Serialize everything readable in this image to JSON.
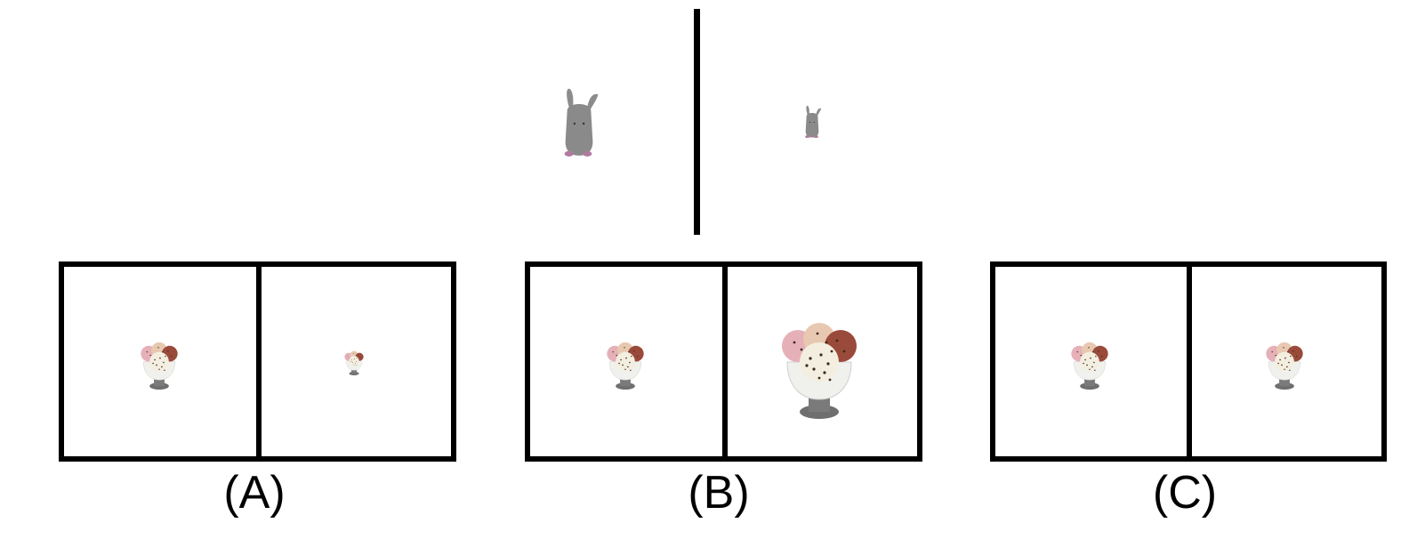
{
  "top_pair": {
    "left_icon": "bunny-figurine-large",
    "right_icon": "bunny-figurine-small"
  },
  "options": [
    {
      "label": "(A)",
      "left_icon": "ice-cream-sundae",
      "right_icon": "ice-cream-sundae-smaller"
    },
    {
      "label": "(B)",
      "left_icon": "ice-cream-sundae",
      "right_icon": "ice-cream-sundae-larger"
    },
    {
      "label": "(C)",
      "left_icon": "ice-cream-sundae",
      "right_icon": "ice-cream-sundae-same"
    }
  ]
}
